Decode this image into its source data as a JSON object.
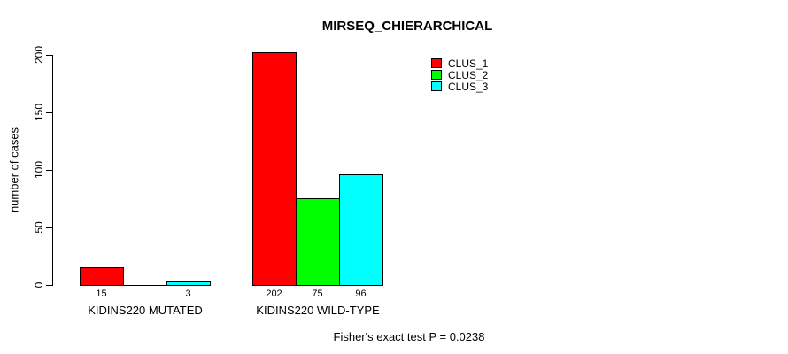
{
  "chart_data": {
    "type": "bar",
    "title": "MIRSEQ_CHIERARCHICAL",
    "ylabel": "number of cases",
    "xlabel": "",
    "ylim": [
      0,
      200
    ],
    "yticks": [
      0,
      50,
      100,
      150,
      200
    ],
    "grid": false,
    "categories": [
      "KIDINS220 MUTATED",
      "KIDINS220 WILD-TYPE"
    ],
    "series": [
      {
        "name": "CLUS_1",
        "color": "#ff0000",
        "values": [
          15,
          202
        ]
      },
      {
        "name": "CLUS_2",
        "color": "#00ff00",
        "values": [
          0,
          75
        ]
      },
      {
        "name": "CLUS_3",
        "color": "#00ffff",
        "values": [
          3,
          96
        ]
      }
    ],
    "value_labels": [
      [
        "15",
        "",
        "3"
      ],
      [
        "202",
        "75",
        "96"
      ]
    ],
    "legend": {
      "position": "top-right",
      "entries": [
        {
          "label": "CLUS_1",
          "color": "#ff0000"
        },
        {
          "label": "CLUS_2",
          "color": "#00ff00"
        },
        {
          "label": "CLUS_3",
          "color": "#00ffff"
        }
      ]
    },
    "annotation": "Fisher's exact test P = 0.0238",
    "axis_color": "#000000",
    "background_color": "#ffffff"
  }
}
